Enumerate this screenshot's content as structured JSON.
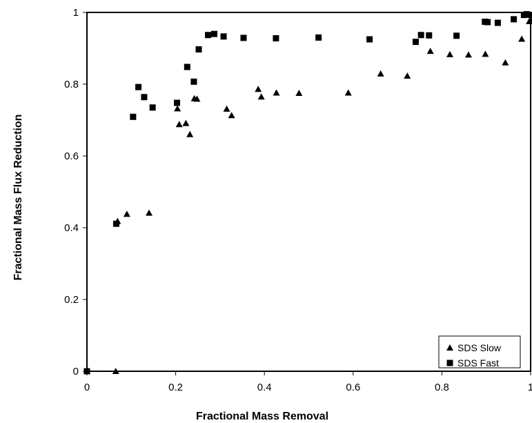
{
  "chart_data": {
    "type": "scatter",
    "title": "",
    "xlabel": "Fractional Mass Removal",
    "ylabel": "Fractional Mass Flux Reduction",
    "xlim": [
      0,
      1
    ],
    "ylim": [
      0,
      1
    ],
    "x_ticks": [
      "0",
      "0.2",
      "0.4",
      "0.6",
      "0.8",
      "1"
    ],
    "y_ticks": [
      "0",
      "0.2",
      "0.4",
      "0.6",
      "0.8",
      "1"
    ],
    "grid": false,
    "legend_position": "bottom-right",
    "series": [
      {
        "name": "SDS Slow",
        "marker": "triangle",
        "color": "#000000",
        "points": [
          [
            0.0,
            0.0
          ],
          [
            0.065,
            0.0
          ],
          [
            0.069,
            0.418
          ],
          [
            0.09,
            0.438
          ],
          [
            0.14,
            0.441
          ],
          [
            0.204,
            0.732
          ],
          [
            0.208,
            0.688
          ],
          [
            0.223,
            0.691
          ],
          [
            0.232,
            0.66
          ],
          [
            0.242,
            0.76
          ],
          [
            0.248,
            0.759
          ],
          [
            0.315,
            0.731
          ],
          [
            0.326,
            0.713
          ],
          [
            0.386,
            0.786
          ],
          [
            0.393,
            0.765
          ],
          [
            0.427,
            0.776
          ],
          [
            0.478,
            0.775
          ],
          [
            0.589,
            0.776
          ],
          [
            0.662,
            0.829
          ],
          [
            0.722,
            0.823
          ],
          [
            0.774,
            0.892
          ],
          [
            0.818,
            0.883
          ],
          [
            0.86,
            0.882
          ],
          [
            0.898,
            0.884
          ],
          [
            0.943,
            0.86
          ],
          [
            0.98,
            0.926
          ],
          [
            0.997,
            0.975
          ],
          [
            1.0,
            0.98
          ]
        ]
      },
      {
        "name": "SDS Fast",
        "marker": "square",
        "color": "#000000",
        "points": [
          [
            0.0,
            0.0
          ],
          [
            0.066,
            0.411
          ],
          [
            0.104,
            0.709
          ],
          [
            0.116,
            0.792
          ],
          [
            0.129,
            0.764
          ],
          [
            0.148,
            0.735
          ],
          [
            0.203,
            0.748
          ],
          [
            0.226,
            0.848
          ],
          [
            0.241,
            0.807
          ],
          [
            0.252,
            0.897
          ],
          [
            0.273,
            0.937
          ],
          [
            0.287,
            0.94
          ],
          [
            0.308,
            0.933
          ],
          [
            0.353,
            0.929
          ],
          [
            0.426,
            0.928
          ],
          [
            0.522,
            0.93
          ],
          [
            0.637,
            0.925
          ],
          [
            0.741,
            0.918
          ],
          [
            0.753,
            0.937
          ],
          [
            0.771,
            0.936
          ],
          [
            0.833,
            0.935
          ],
          [
            0.897,
            0.974
          ],
          [
            0.903,
            0.973
          ],
          [
            0.926,
            0.971
          ],
          [
            0.962,
            0.981
          ],
          [
            0.985,
            0.993
          ],
          [
            0.991,
            0.995
          ],
          [
            1.0,
            0.993
          ]
        ]
      }
    ]
  }
}
